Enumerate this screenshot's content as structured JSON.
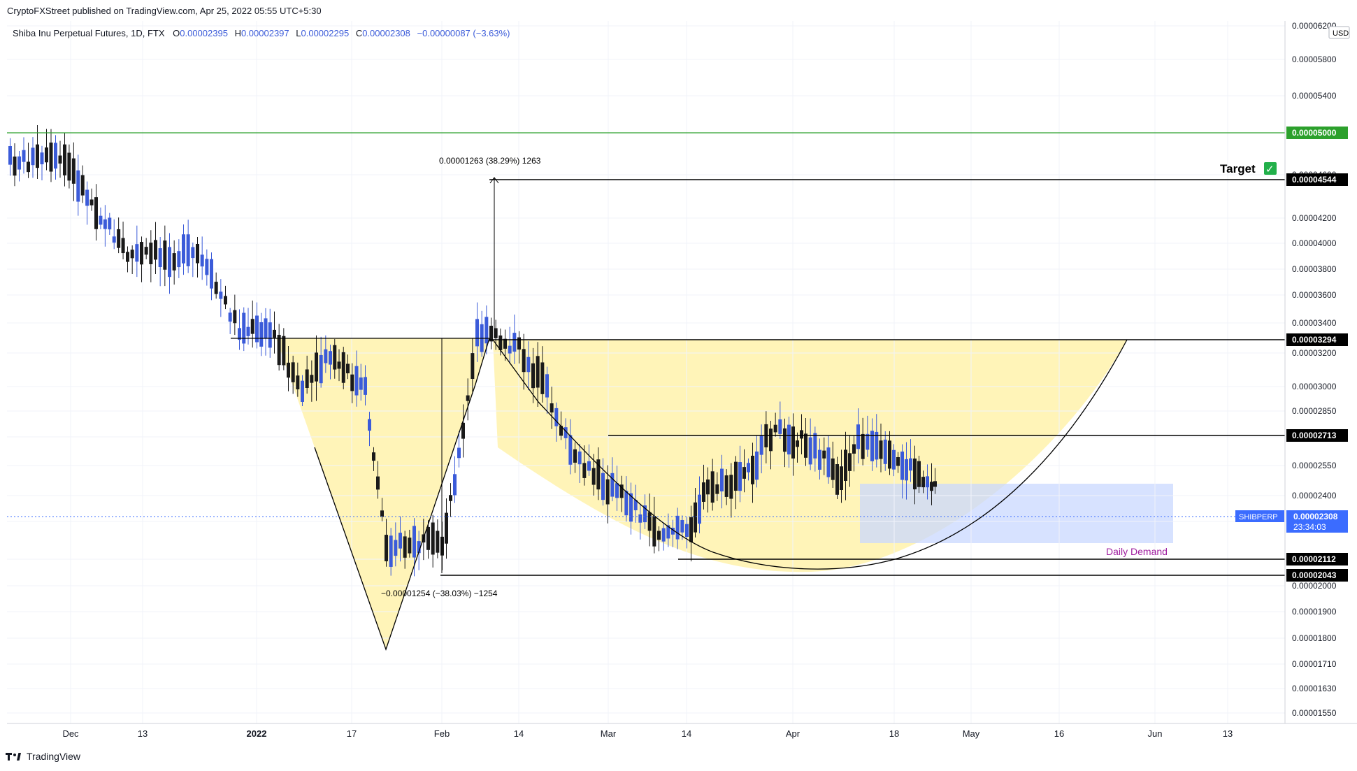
{
  "header": {
    "published": "CryptoFXStreet published on TradingView.com, Apr 25, 2022 05:55 UTC+5:30",
    "symbol_line": "Shiba Inu Perpetual Futures, 1D, FTX",
    "o_label": "O",
    "o_value": "0.00002395",
    "h_label": "H",
    "h_value": "0.00002397",
    "l_label": "L",
    "l_value": "0.00002295",
    "c_label": "C",
    "c_value": "0.00002308",
    "change": "−0.00000087 (−3.63%)"
  },
  "footer": {
    "brand": "TradingView"
  },
  "colors": {
    "up": "#3b5bd9",
    "down": "#1a1a1a",
    "pattern_fill": "#fff3b0",
    "demand_fill": "#c9d8ff",
    "green_line": "#2ca02c",
    "price_label": "#3b6cff"
  },
  "chart_data": {
    "type": "candlestick",
    "currency": "USD",
    "y_axis_ticks": [
      "0.00006200",
      "0.00005800",
      "0.00005400",
      "0.00005000",
      "0.00004600",
      "0.00004200",
      "0.00004000",
      "0.00003800",
      "0.00003600",
      "0.00003400",
      "0.00003200",
      "0.00003000",
      "0.00002850",
      "0.00002700",
      "0.00002550",
      "0.00002400",
      "0.00002250",
      "0.00002120",
      "0.00002000",
      "0.00001900",
      "0.00001800",
      "0.00001710",
      "0.00001630",
      "0.00001550"
    ],
    "x_axis_ticks": [
      "Dec",
      "13",
      "2022",
      "17",
      "Feb",
      "14",
      "Mar",
      "14",
      "Apr",
      "18",
      "May",
      "16",
      "Jun",
      "13"
    ],
    "levels": [
      {
        "value": "0.00005000",
        "style": "green"
      },
      {
        "value": "0.00004544",
        "label": "Target"
      },
      {
        "value": "0.00003294"
      },
      {
        "value": "0.00002713"
      },
      {
        "value": "0.00002112"
      },
      {
        "value": "0.00002043"
      }
    ],
    "current_price": {
      "symbol": "SHIBPERP",
      "value": "0.00002308",
      "countdown": "23:34:03"
    },
    "annotations": {
      "measure_up": "0.00001263 (38.29%) 1263",
      "measure_down": "−0.00001254 (−38.03%) −1254",
      "demand_zone": "Daily Demand",
      "target_check": "✓"
    },
    "patterns": [
      "V-shaped retracement",
      "cup / rounded bottom"
    ]
  }
}
